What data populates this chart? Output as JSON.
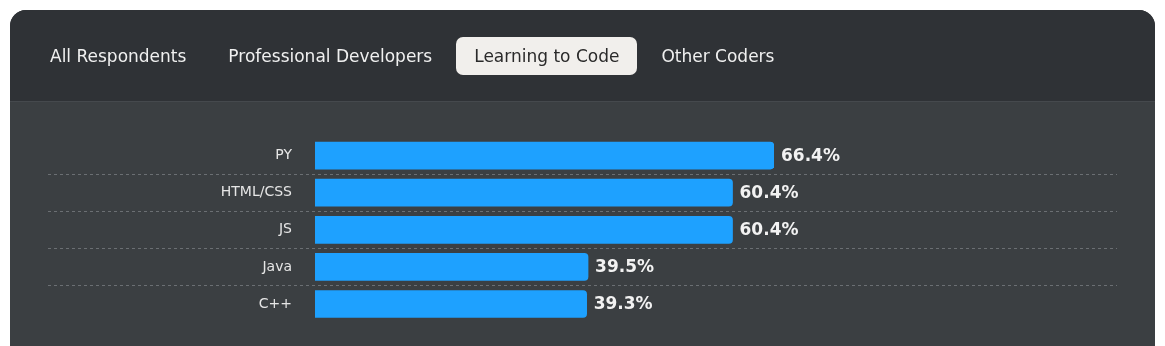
{
  "chart_data": {
    "type": "bar",
    "orientation": "horizontal",
    "annotations": [
      "All Respondents",
      "Professional Developers",
      "Learning to Code",
      "Other Coders"
    ],
    "categories": [
      "PY",
      "HTML/CSS",
      "JS",
      "Java",
      "C++"
    ],
    "values": [
      66.4,
      60.4,
      60.4,
      39.5,
      39.3
    ],
    "value_labels": [
      "66.4%",
      "60.4%",
      "60.4%",
      "39.5%",
      "39.3%"
    ],
    "color": "#1ea1ff",
    "tick_labels": "y",
    "grid": "y",
    "legend": false
  }
}
